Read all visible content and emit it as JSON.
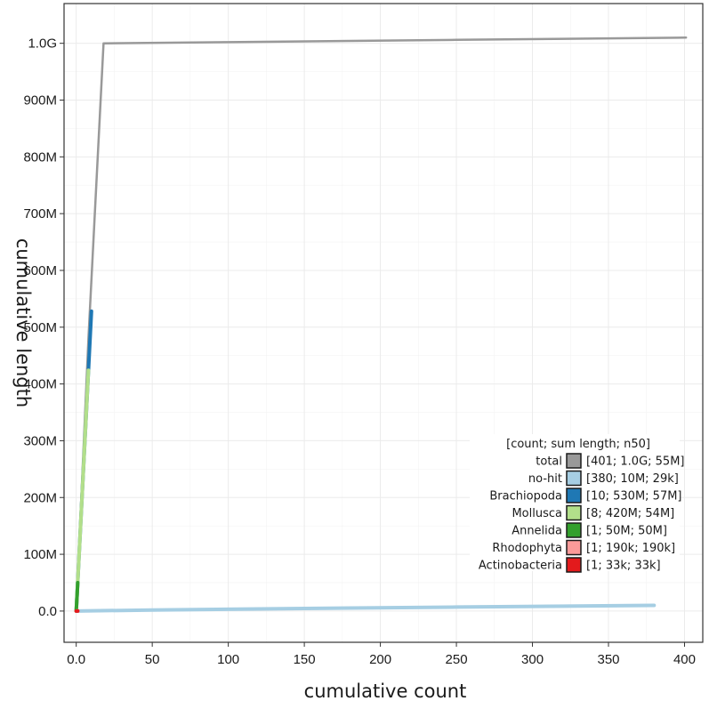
{
  "chart_data": {
    "type": "line",
    "xlabel": "cumulative count",
    "ylabel": "cumulative length",
    "xlim": [
      -8,
      412
    ],
    "ylim": [
      -55000000,
      1070000000
    ],
    "x_ticks": [
      {
        "value": 0,
        "label": "0.0"
      },
      {
        "value": 50,
        "label": "50"
      },
      {
        "value": 100,
        "label": "100"
      },
      {
        "value": 150,
        "label": "150"
      },
      {
        "value": 200,
        "label": "200"
      },
      {
        "value": 250,
        "label": "250"
      },
      {
        "value": 300,
        "label": "300"
      },
      {
        "value": 350,
        "label": "350"
      },
      {
        "value": 400,
        "label": "400"
      }
    ],
    "y_ticks": [
      {
        "value": 0,
        "label": "0.0"
      },
      {
        "value": 100000000,
        "label": "100M"
      },
      {
        "value": 200000000,
        "label": "200M"
      },
      {
        "value": 300000000,
        "label": "300M"
      },
      {
        "value": 400000000,
        "label": "400M"
      },
      {
        "value": 500000000,
        "label": "500M"
      },
      {
        "value": 600000000,
        "label": "600M"
      },
      {
        "value": 700000000,
        "label": "700M"
      },
      {
        "value": 800000000,
        "label": "800M"
      },
      {
        "value": 900000000,
        "label": "900M"
      },
      {
        "value": 1000000000,
        "label": "1.0G"
      }
    ],
    "grid": true,
    "legend": {
      "position": "bottom-right",
      "title": "[count; sum length; n50]"
    },
    "series": [
      {
        "name": "total",
        "stats": "[401; 1.0G; 55M]",
        "color": "#999999",
        "width": 2.5,
        "points": [
          [
            0,
            0
          ],
          [
            8,
            480000000
          ],
          [
            18,
            1000000000
          ],
          [
            100,
            1002000000
          ],
          [
            250,
            1006000000
          ],
          [
            401,
            1010000000
          ]
        ]
      },
      {
        "name": "no-hit",
        "stats": "[380; 10M; 29k]",
        "color": "#a6cee3",
        "width": 4,
        "points": [
          [
            0,
            0
          ],
          [
            50,
            1800000
          ],
          [
            150,
            4500000
          ],
          [
            250,
            7000000
          ],
          [
            380,
            10000000
          ]
        ]
      },
      {
        "name": "Brachiopoda",
        "stats": "[10; 530M; 57M]",
        "color": "#1f78b4",
        "width": 4,
        "points": [
          [
            0,
            0
          ],
          [
            10,
            528000000
          ]
        ]
      },
      {
        "name": "Mollusca",
        "stats": "[8; 420M; 54M]",
        "color": "#b2df8a",
        "width": 4,
        "points": [
          [
            0,
            0
          ],
          [
            8,
            424000000
          ]
        ]
      },
      {
        "name": "Annelida",
        "stats": "[1; 50M; 50M]",
        "color": "#33a02c",
        "width": 4,
        "points": [
          [
            0,
            0
          ],
          [
            1,
            50000000
          ]
        ]
      },
      {
        "name": "Rhodophyta",
        "stats": "[1; 190k; 190k]",
        "color": "#fb9a99",
        "width": 4,
        "points": [
          [
            0,
            0
          ],
          [
            1,
            190000
          ]
        ]
      },
      {
        "name": "Actinobacteria",
        "stats": "[1; 33k; 33k]",
        "color": "#e31a1c",
        "width": 4,
        "points": [
          [
            0,
            0
          ],
          [
            1,
            33000
          ]
        ]
      }
    ]
  }
}
